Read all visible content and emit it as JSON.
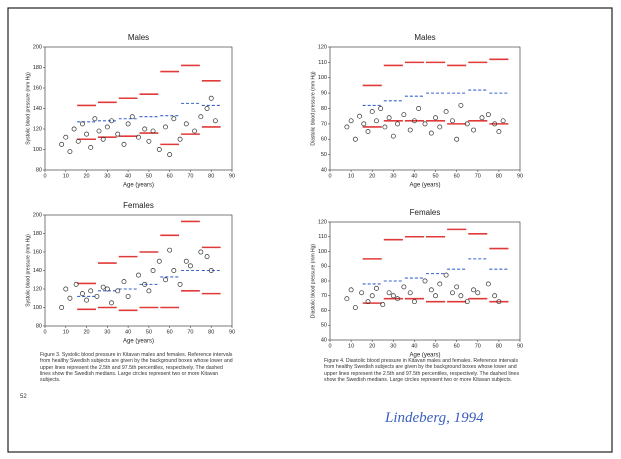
{
  "chart_data": [
    {
      "type": "scatter",
      "title": "Males",
      "xlabel": "Age (years)",
      "ylabel": "Systolic blood pressure (mm Hg)",
      "xlim": [
        0,
        90
      ],
      "ylim": [
        80,
        200
      ],
      "xticks": [
        0,
        10,
        20,
        30,
        40,
        50,
        60,
        70,
        80,
        90
      ],
      "yticks": [
        80,
        100,
        120,
        140,
        160,
        180,
        200
      ],
      "x": [
        8,
        10,
        12,
        14,
        16,
        18,
        20,
        22,
        24,
        26,
        28,
        30,
        32,
        35,
        38,
        40,
        42,
        45,
        48,
        50,
        52,
        55,
        58,
        60,
        62,
        65,
        68,
        72,
        75,
        78,
        80,
        82
      ],
      "y": [
        105,
        112,
        98,
        120,
        108,
        125,
        115,
        102,
        130,
        118,
        110,
        122,
        128,
        115,
        105,
        125,
        132,
        112,
        120,
        108,
        118,
        100,
        122,
        95,
        130,
        110,
        125,
        118,
        132,
        140,
        150,
        128
      ],
      "point_color": "#333333",
      "bins": [
        15,
        25,
        35,
        45,
        55,
        65,
        75,
        85
      ],
      "series": [
        {
          "color": "#e03a3a",
          "dashed": false,
          "values": [
            143,
            146,
            150,
            154,
            176,
            182,
            167
          ]
        },
        {
          "color": "#e03a3a",
          "dashed": false,
          "values": [
            110,
            112,
            113,
            116,
            105,
            115,
            122
          ]
        },
        {
          "color": "#3a63d0",
          "dashed": true,
          "values": [
            127,
            128,
            130,
            132,
            133,
            145,
            143
          ]
        }
      ]
    },
    {
      "type": "scatter",
      "title": "Males",
      "xlabel": "Age (years)",
      "ylabel": "Diastolic blood pressure (mm Hg)",
      "xlim": [
        0,
        90
      ],
      "ylim": [
        40,
        120
      ],
      "xticks": [
        0,
        10,
        20,
        30,
        40,
        50,
        60,
        70,
        80,
        90
      ],
      "yticks": [
        40,
        50,
        60,
        70,
        80,
        90,
        100,
        110,
        120
      ],
      "x": [
        8,
        10,
        12,
        14,
        16,
        18,
        20,
        22,
        24,
        26,
        28,
        30,
        32,
        35,
        38,
        40,
        42,
        45,
        48,
        50,
        52,
        55,
        58,
        60,
        62,
        65,
        68,
        72,
        75,
        78,
        80,
        82
      ],
      "y": [
        68,
        72,
        60,
        75,
        70,
        65,
        78,
        72,
        80,
        68,
        74,
        62,
        70,
        76,
        66,
        72,
        80,
        70,
        64,
        74,
        68,
        78,
        72,
        60,
        82,
        70,
        66,
        74,
        76,
        70,
        65,
        72
      ],
      "point_color": "#333333",
      "bins": [
        15,
        25,
        35,
        45,
        55,
        65,
        75,
        85
      ],
      "series": [
        {
          "color": "#e03a3a",
          "dashed": false,
          "values": [
            95,
            108,
            110,
            110,
            108,
            110,
            112
          ]
        },
        {
          "color": "#e03a3a",
          "dashed": false,
          "values": [
            68,
            72,
            72,
            72,
            70,
            72,
            70
          ]
        },
        {
          "color": "#3a63d0",
          "dashed": true,
          "values": [
            82,
            85,
            88,
            90,
            90,
            92,
            90
          ]
        }
      ]
    },
    {
      "type": "scatter",
      "title": "Females",
      "xlabel": "Age (years)",
      "ylabel": "Systolic blood pressure (mm Hg)",
      "xlim": [
        0,
        90
      ],
      "ylim": [
        80,
        200
      ],
      "xticks": [
        0,
        10,
        20,
        30,
        40,
        50,
        60,
        70,
        80,
        90
      ],
      "yticks": [
        80,
        100,
        120,
        140,
        160,
        180,
        200
      ],
      "x": [
        8,
        10,
        12,
        15,
        18,
        20,
        22,
        25,
        28,
        30,
        32,
        35,
        38,
        40,
        45,
        48,
        50,
        52,
        55,
        58,
        60,
        62,
        65,
        68,
        70,
        75,
        78,
        80
      ],
      "y": [
        100,
        120,
        110,
        125,
        115,
        108,
        118,
        112,
        122,
        120,
        105,
        118,
        128,
        112,
        135,
        125,
        118,
        140,
        150,
        130,
        162,
        140,
        125,
        150,
        145,
        160,
        155,
        140
      ],
      "point_color": "#333333",
      "bins": [
        15,
        25,
        35,
        45,
        55,
        65,
        75,
        85
      ],
      "series": [
        {
          "color": "#e03a3a",
          "dashed": false,
          "values": [
            126,
            148,
            155,
            160,
            178,
            193,
            165
          ]
        },
        {
          "color": "#e03a3a",
          "dashed": false,
          "values": [
            98,
            100,
            97,
            100,
            100,
            118,
            115
          ]
        },
        {
          "color": "#3a63d0",
          "dashed": true,
          "values": [
            112,
            118,
            120,
            125,
            133,
            140,
            140
          ]
        }
      ]
    },
    {
      "type": "scatter",
      "title": "Females",
      "xlabel": "Age (years)",
      "ylabel": "Diastolic blood pressure (mm Hg)",
      "xlim": [
        0,
        90
      ],
      "ylim": [
        40,
        120
      ],
      "xticks": [
        0,
        10,
        20,
        30,
        40,
        50,
        60,
        70,
        80,
        90
      ],
      "yticks": [
        40,
        50,
        60,
        70,
        80,
        90,
        100,
        110,
        120
      ],
      "x": [
        8,
        10,
        12,
        15,
        18,
        20,
        22,
        25,
        28,
        30,
        32,
        35,
        38,
        40,
        45,
        48,
        50,
        52,
        55,
        58,
        60,
        62,
        65,
        68,
        70,
        75,
        78,
        80
      ],
      "y": [
        68,
        74,
        62,
        72,
        66,
        70,
        75,
        64,
        72,
        70,
        68,
        76,
        72,
        66,
        80,
        74,
        70,
        78,
        84,
        72,
        76,
        70,
        66,
        74,
        72,
        78,
        70,
        66
      ],
      "point_color": "#333333",
      "bins": [
        15,
        25,
        35,
        45,
        55,
        65,
        75,
        85
      ],
      "series": [
        {
          "color": "#e03a3a",
          "dashed": false,
          "values": [
            95,
            108,
            110,
            110,
            115,
            112,
            102
          ]
        },
        {
          "color": "#e03a3a",
          "dashed": false,
          "values": [
            65,
            68,
            68,
            66,
            66,
            68,
            66
          ]
        },
        {
          "color": "#3a63d0",
          "dashed": true,
          "values": [
            78,
            80,
            82,
            85,
            88,
            95,
            88
          ]
        }
      ]
    }
  ],
  "captions": [
    "Figure 3. Systolic blood pressure in Kitavan males and females. Reference intervals from healthy Swedish subjects are given by the background boxes whose lower and upper lines represent the 2.5th and 97.5th percentiles, respectively. The dashed lines show the Swedish medians. Large circles represent two or more Kitavan subjects.",
    "Figure 4. Diastolic blood pressure in Kitavan males and females. Reference intervals from healthy Swedish subjects are given by the background boxes whose lower and upper lines represent the 2.5th and 97.5th percentiles, respectively. The dashed lines show the Swedish medians. Large circles represent two or more Kitavan subjects."
  ],
  "page_number": "52",
  "handwriting": "Lindeberg, 1994"
}
